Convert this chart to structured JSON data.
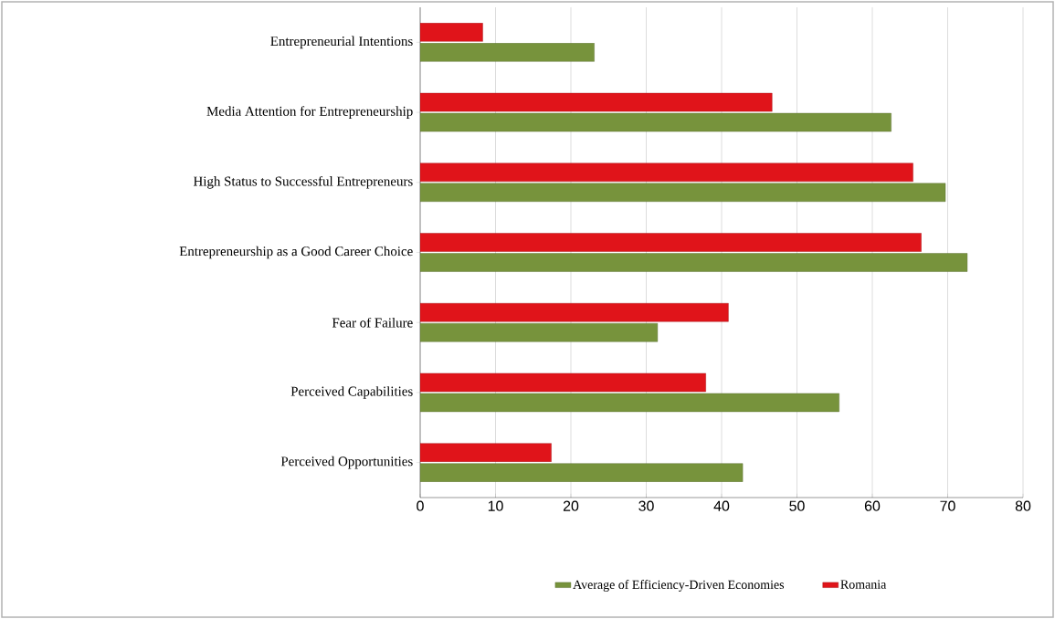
{
  "chart_data": {
    "type": "bar",
    "orientation": "horizontal",
    "categories": [
      "Entrepreneurial Intentions",
      "Media Attention for Entrepreneurship",
      "High Status to Successful Entrepreneurs",
      "Entrepreneurship as a Good Career Choice",
      "Fear of Failure",
      "Perceived Capabilities",
      "Perceived Opportunities"
    ],
    "series": [
      {
        "name": "Average of Efficiency-Driven Economies",
        "color": "#77933c",
        "values": [
          23.1,
          62.5,
          69.7,
          72.6,
          31.5,
          55.6,
          42.8
        ]
      },
      {
        "name": "Romania",
        "color": "#e0141a",
        "values": [
          8.3,
          46.7,
          65.4,
          66.5,
          40.9,
          37.9,
          17.4
        ]
      }
    ],
    "xlim": [
      0,
      80
    ],
    "xticks": [
      0,
      10,
      20,
      30,
      40,
      50,
      60,
      70,
      80
    ],
    "grid": "x",
    "legend": "bottom"
  }
}
